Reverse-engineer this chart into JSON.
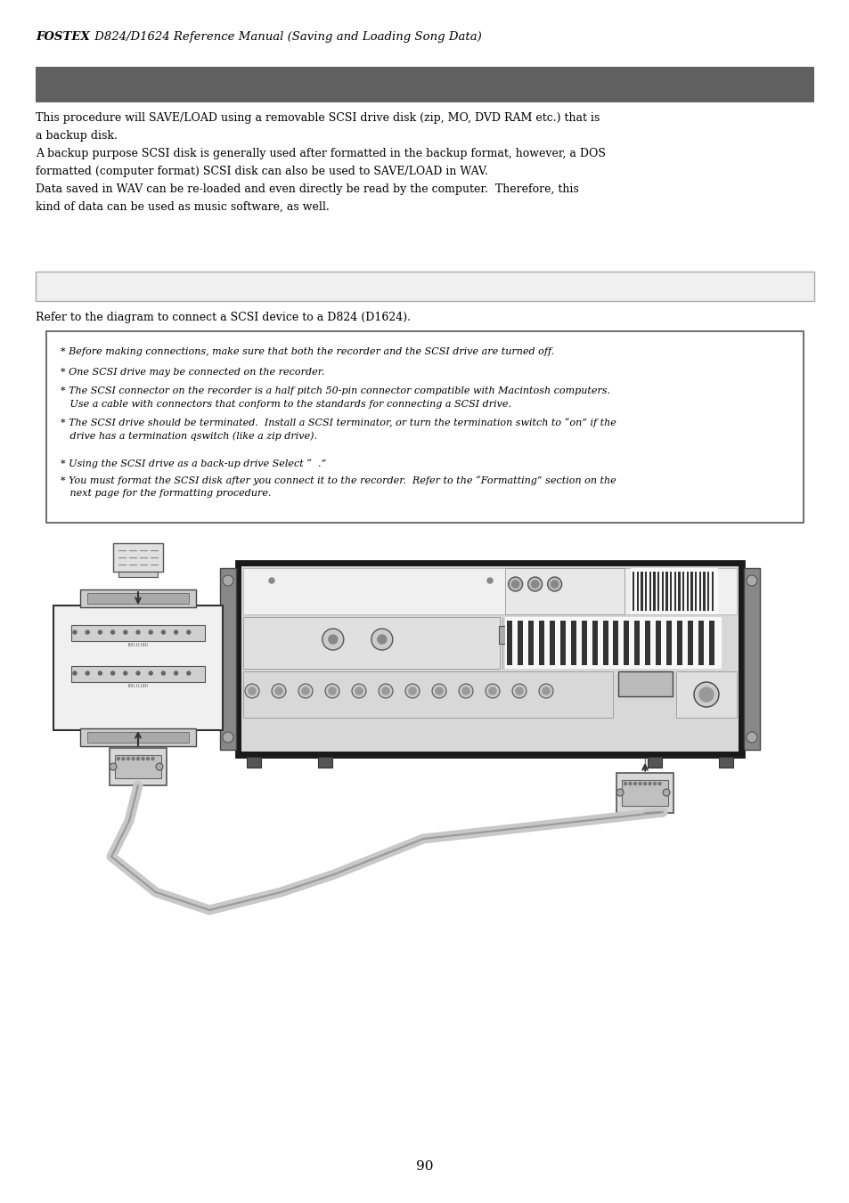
{
  "page_width": 9.54,
  "page_height": 13.51,
  "background_color": "#ffffff",
  "header_fostex": "FOSTEX",
  "header_rest": " D824/D1624 Reference Manual (Saving and Loading Song Data)",
  "dark_bar_color": "#606060",
  "light_bar_color": "#f0f0f0",
  "light_bar_border": "#aaaaaa",
  "note_box_border": "#555555",
  "body_lines": [
    "This procedure will SAVE/LOAD using a removable SCSI drive disk (zip, MO, DVD RAM etc.) that is",
    "a backup disk.",
    "A backup purpose SCSI disk is generally used after formatted in the backup format, however, a DOS",
    "formatted (computer format) SCSI disk can also be used to SAVE/LOAD in WAV.",
    "Data saved in WAV can be re-loaded and even directly be read by the computer.  Therefore, this",
    "kind of data can be used as music software, as well."
  ],
  "body2": "Refer to the diagram to connect a SCSI device to a D824 (D1624).",
  "note_lines": [
    [
      "* Before making connections, make sure that both the recorder and the SCSI drive are turned off.",
      false
    ],
    [
      "* One SCSI drive may be connected on the recorder.",
      false
    ],
    [
      "* The SCSI connector on the recorder is a half pitch 50-pin connector compatible with Macintosh computers.",
      false
    ],
    [
      "   Use a cable with connectors that conform to the standards for connecting a SCSI drive.",
      false
    ],
    [
      "* The SCSI drive should be terminated.  Install a SCSI terminator, or turn the termination switch to “on” if the",
      false
    ],
    [
      "   drive has a termination qswitch (like a zip drive).",
      false
    ],
    [
      "",
      false
    ],
    [
      "* Using the SCSI drive as a back-up drive Select “  .”",
      false
    ],
    [
      "* You must format the SCSI disk after you connect it to the recorder.  Refer to the “Formatting” section on the",
      false
    ],
    [
      "   next page for the formatting procedure.",
      false
    ]
  ],
  "page_number": "90"
}
